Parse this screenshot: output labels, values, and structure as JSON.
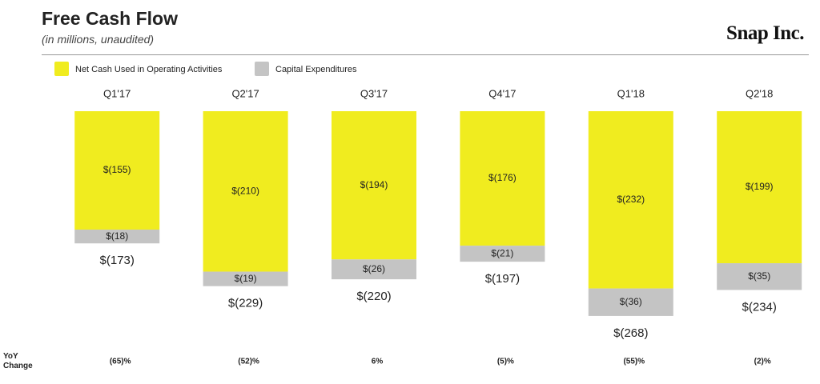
{
  "chart_data": {
    "type": "bar",
    "stacked": true,
    "title": "Free Cash Flow",
    "subtitle": "(in millions, unaudited)",
    "brand": "Snap Inc.",
    "categories": [
      "Q1'17",
      "Q2'17",
      "Q3'17",
      "Q4'17",
      "Q1'18",
      "Q2'18"
    ],
    "series": [
      {
        "name": "Net Cash Used in Operating Activities",
        "color": "#f0ec1f",
        "values": [
          -155,
          -210,
          -194,
          -176,
          -232,
          -199
        ],
        "value_labels": [
          "$(155)",
          "$(210)",
          "$(194)",
          "$(176)",
          "$(232)",
          "$(199)"
        ]
      },
      {
        "name": "Capital Expenditures",
        "color": "#c4c4c4",
        "values": [
          -18,
          -19,
          -26,
          -21,
          -36,
          -35
        ],
        "value_labels": [
          "$(18)",
          "$(19)",
          "$(26)",
          "$(21)",
          "$(36)",
          "$(35)"
        ]
      }
    ],
    "totals": {
      "values": [
        -173,
        -229,
        -220,
        -197,
        -268,
        -234
      ],
      "value_labels": [
        "$(173)",
        "$(229)",
        "$(220)",
        "$(197)",
        "$(268)",
        "$(234)"
      ]
    },
    "yoy_change": {
      "label": "YoY Change",
      "values": [
        -65,
        -52,
        6,
        -5,
        -55,
        -2
      ],
      "value_labels": [
        "(65)%",
        "(52)%",
        "6%",
        "(5)%",
        "(55)%",
        "(2)%"
      ]
    }
  }
}
